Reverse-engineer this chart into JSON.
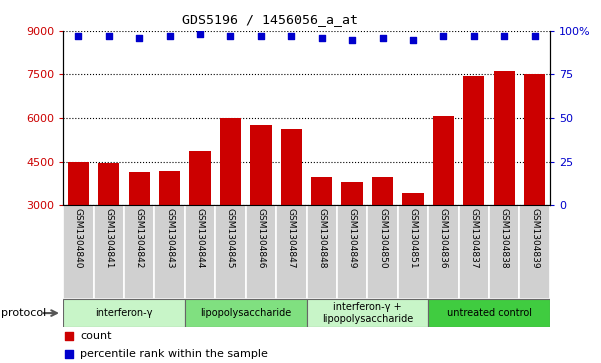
{
  "title": "GDS5196 / 1456056_a_at",
  "samples": [
    "GSM1304840",
    "GSM1304841",
    "GSM1304842",
    "GSM1304843",
    "GSM1304844",
    "GSM1304845",
    "GSM1304846",
    "GSM1304847",
    "GSM1304848",
    "GSM1304849",
    "GSM1304850",
    "GSM1304851",
    "GSM1304836",
    "GSM1304837",
    "GSM1304838",
    "GSM1304839"
  ],
  "counts": [
    4480,
    4450,
    4150,
    4180,
    4870,
    6010,
    5750,
    5620,
    3970,
    3780,
    3980,
    3420,
    6080,
    7440,
    7620,
    7520
  ],
  "percentiles": [
    97,
    97,
    96,
    97,
    98,
    97,
    97,
    97,
    96,
    95,
    96,
    95,
    97,
    97,
    97,
    97
  ],
  "groups": [
    {
      "label": "interferon-γ",
      "start": 0,
      "end": 4,
      "color": "#c8f5c8"
    },
    {
      "label": "lipopolysaccharide",
      "start": 4,
      "end": 8,
      "color": "#80e080"
    },
    {
      "label": "interferon-γ +\nlipopolysaccharide",
      "start": 8,
      "end": 12,
      "color": "#c8f5c8"
    },
    {
      "label": "untreated control",
      "start": 12,
      "end": 16,
      "color": "#40cc40"
    }
  ],
  "ylim_left": [
    3000,
    9000
  ],
  "ylim_right": [
    0,
    100
  ],
  "yticks_left": [
    3000,
    4500,
    6000,
    7500,
    9000
  ],
  "yticks_right": [
    0,
    25,
    50,
    75,
    100
  ],
  "bar_color": "#cc0000",
  "dot_color": "#0000cc",
  "bg_color": "#d0d0d0",
  "legend_count_color": "#cc0000",
  "legend_pct_color": "#0000cc"
}
